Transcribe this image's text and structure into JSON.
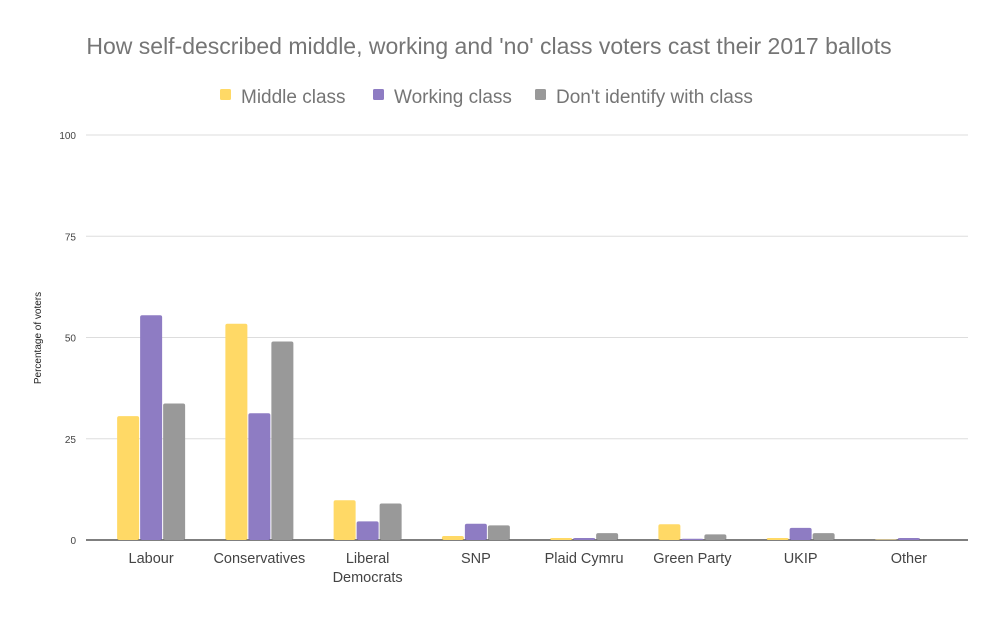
{
  "chart_data": {
    "type": "bar",
    "title": "How self-described middle, working and 'no' class voters cast their 2017 ballots",
    "xlabel": "",
    "ylabel": "Percentage of voters",
    "ylim": [
      0,
      100
    ],
    "yticks": [
      0,
      25,
      50,
      75,
      100
    ],
    "grid": true,
    "legend_position": "top",
    "categories": [
      "Labour",
      "Conservatives",
      "Liberal Democrats",
      "SNP",
      "Plaid Cymru",
      "Green Party",
      "UKIP",
      "Other"
    ],
    "category_lines": [
      [
        "Labour"
      ],
      [
        "Conservatives"
      ],
      [
        "Liberal",
        "Democrats"
      ],
      [
        "SNP"
      ],
      [
        "Plaid Cymru"
      ],
      [
        "Green Party"
      ],
      [
        "UKIP"
      ],
      [
        "Other"
      ]
    ],
    "series": [
      {
        "name": "Middle class",
        "color": "#ffd966",
        "values": [
          30.6,
          53.4,
          9.8,
          1.0,
          0.5,
          3.9,
          0.5,
          0.1
        ]
      },
      {
        "name": "Working class",
        "color": "#8e7cc3",
        "values": [
          55.5,
          31.3,
          4.6,
          4.0,
          0.5,
          0.3,
          3.0,
          0.5
        ]
      },
      {
        "name": "Don't identify with class",
        "color": "#999999",
        "values": [
          33.7,
          49.0,
          9.0,
          3.6,
          1.7,
          1.4,
          1.7,
          0
        ]
      }
    ]
  }
}
